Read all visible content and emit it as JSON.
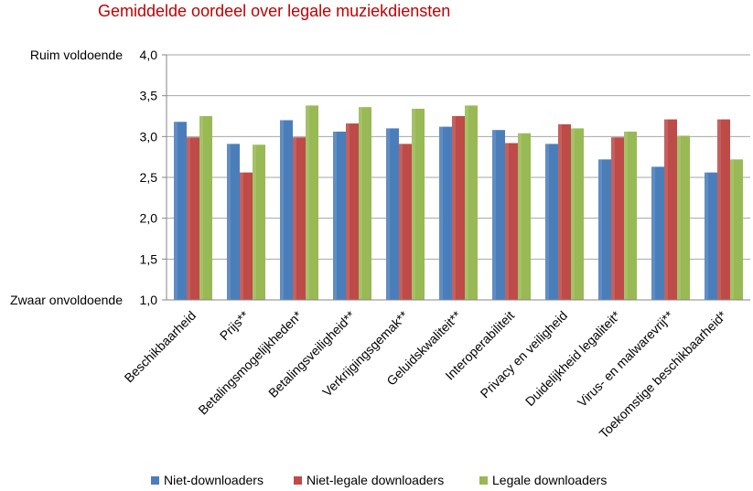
{
  "chart_data": {
    "type": "bar",
    "title": "Gemiddelde oordeel over legale muziekdiensten",
    "xlabel": "",
    "ylabel": "",
    "ylim": [
      1.0,
      4.0
    ],
    "yticks": [
      "1,0",
      "1,5",
      "2,0",
      "2,5",
      "3,0",
      "3,5",
      "4,0"
    ],
    "ylabel_top": "Ruim voldoende",
    "ylabel_bottom": "Zwaar onvoldoende",
    "grid": true,
    "legend_position": "bottom",
    "categories": [
      "Beschikbaarheid",
      "Prijs**",
      "Betalingsmogelijkheden*",
      "Betalingsveiligheid**",
      "Verkrijgingsgemak**",
      "Geluidskwaliteit**",
      "Interoperabiliteit",
      "Privacy en veiligheid",
      "Duidelijkheid legaliteit*",
      "Virus- en malwarevrij**",
      "Toekomstige beschikbaarheid*"
    ],
    "series": [
      {
        "name": "Niet-downloaders",
        "color": "#4a7ebb",
        "values": [
          3.18,
          2.91,
          3.2,
          3.06,
          3.1,
          3.12,
          3.08,
          2.91,
          2.72,
          2.63,
          2.56
        ]
      },
      {
        "name": "Niet-legale downloaders",
        "color": "#be4b48",
        "values": [
          2.99,
          2.56,
          2.99,
          3.16,
          2.91,
          3.25,
          2.92,
          3.15,
          2.99,
          3.21,
          3.21
        ]
      },
      {
        "name": "Legale downloaders",
        "color": "#98b954",
        "values": [
          3.25,
          2.9,
          3.38,
          3.36,
          3.34,
          3.38,
          3.04,
          3.1,
          3.06,
          3.01,
          2.72
        ]
      }
    ]
  }
}
